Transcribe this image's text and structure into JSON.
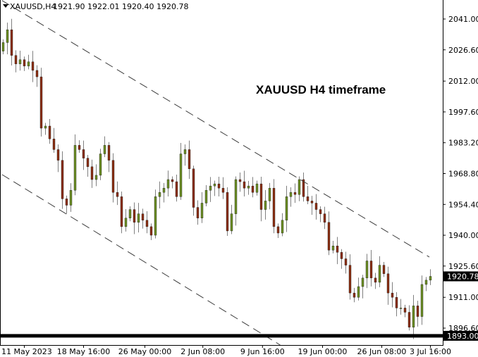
{
  "header": {
    "symbol": "XAUUSD,H4",
    "ohlc": "1921.90 1922.01 1920.40 1920.78"
  },
  "annotation": "XAUUSD H4 timeframe",
  "chart_data": {
    "type": "candlestick",
    "title": "",
    "colors": {
      "bull": "#6b8e23",
      "bear": "#8b2d10",
      "wick": "#808080",
      "channel": "#3c3c3c",
      "level": "#000000"
    },
    "y_ticks": [
      "2041.00",
      "2026.60",
      "2012.00",
      "1997.60",
      "1983.20",
      "1968.80",
      "1954.40",
      "1940.00",
      "1925.60",
      "1911.00",
      "1896.60"
    ],
    "ylim": [
      1888.7,
      2049.9
    ],
    "x_ticks": [
      {
        "label": "11 May 2023",
        "bar": 5
      },
      {
        "label": "18 May 16:00",
        "bar": 19
      },
      {
        "label": "26 May 00:00",
        "bar": 33.5
      },
      {
        "label": "2 Jun 08:00",
        "bar": 47.2
      },
      {
        "label": "9 Jun 16:00",
        "bar": 61.3
      },
      {
        "label": "19 Jun 00:00",
        "bar": 75.5
      },
      {
        "label": "26 Jun 08:00",
        "bar": 89.5
      },
      {
        "label": "3 Jul 16:00",
        "bar": 101
      }
    ],
    "closes": [
      2030,
      2036,
      2024,
      2020,
      2022,
      2019,
      2021,
      2017,
      2014,
      1990,
      1991,
      1985,
      1980,
      1975,
      1957,
      1954,
      1961,
      1982,
      1980,
      1976,
      1972,
      1966,
      1968,
      1978,
      1982,
      1975,
      1960,
      1958,
      1944,
      1948,
      1952,
      1946,
      1950,
      1947,
      1944,
      1940,
      1958,
      1960,
      1962,
      1966,
      1965,
      1958,
      1978,
      1980,
      1971,
      1953,
      1948,
      1955,
      1961,
      1963,
      1964,
      1962,
      1960,
      1942,
      1950,
      1966,
      1965,
      1962,
      1963,
      1960,
      1964,
      1952,
      1956,
      1962,
      1944,
      1941,
      1947,
      1958,
      1960,
      1959,
      1966,
      1958,
      1956,
      1955,
      1952,
      1950,
      1946,
      1933,
      1935,
      1932,
      1929,
      1926,
      1913,
      1911,
      1916,
      1920,
      1928,
      1920,
      1918,
      1926,
      1922,
      1913,
      1911,
      1906,
      1906,
      1904,
      1897,
      1907,
      1902,
      1917,
      1919,
      1920.78
    ],
    "current_price": "1920.78",
    "horizontal_level": "1893.00",
    "channel": {
      "upper": {
        "price_at_first_bar": 2049.6,
        "price_at_last_bar": 1929.8
      },
      "lower": {
        "price_at_first_bar": 1968.3,
        "price_at_last_bar": 1846.0
      }
    }
  }
}
